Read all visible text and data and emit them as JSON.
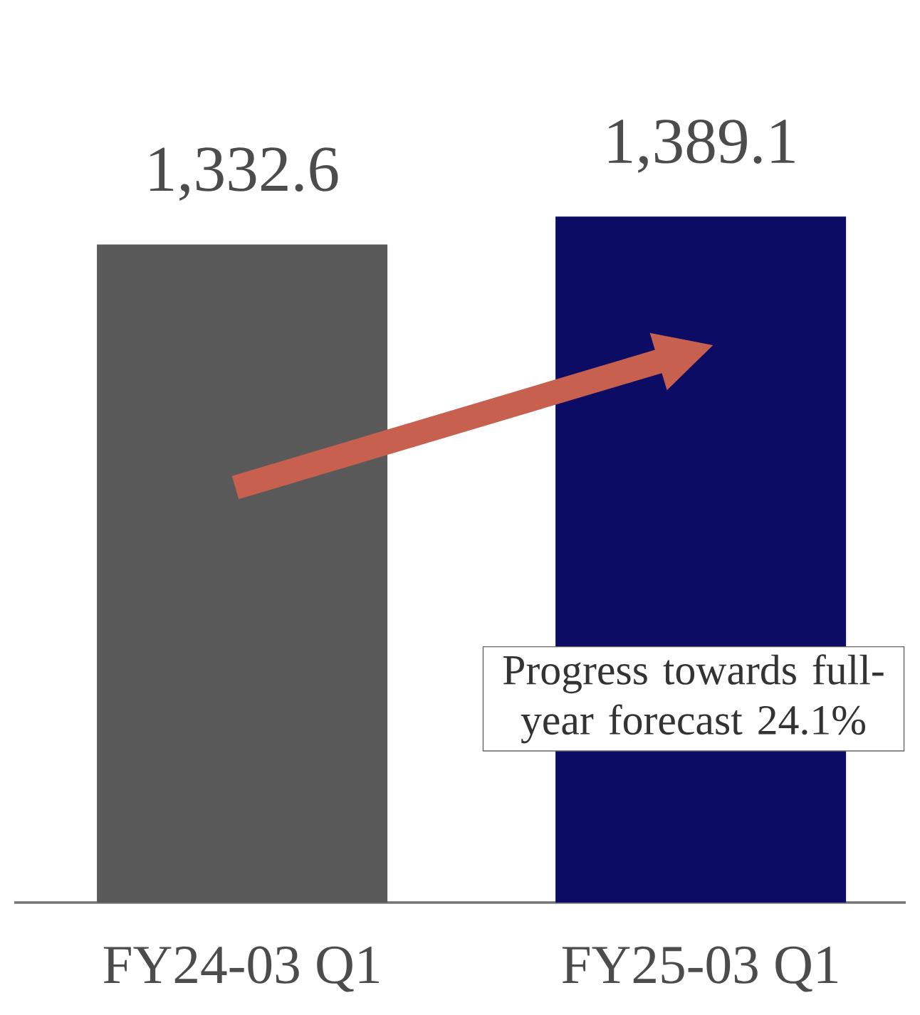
{
  "chart_data": {
    "type": "bar",
    "categories": [
      "FY24-03 Q1",
      "FY25-03 Q1"
    ],
    "values": [
      1332.6,
      1389.1
    ],
    "value_labels": [
      "1,332.6",
      "1,389.1"
    ],
    "colors": [
      "#595959",
      "#0c0c64"
    ],
    "tick_labels": "x",
    "annotations": [
      "Progress towards full-year forecast 24.1%"
    ]
  }
}
